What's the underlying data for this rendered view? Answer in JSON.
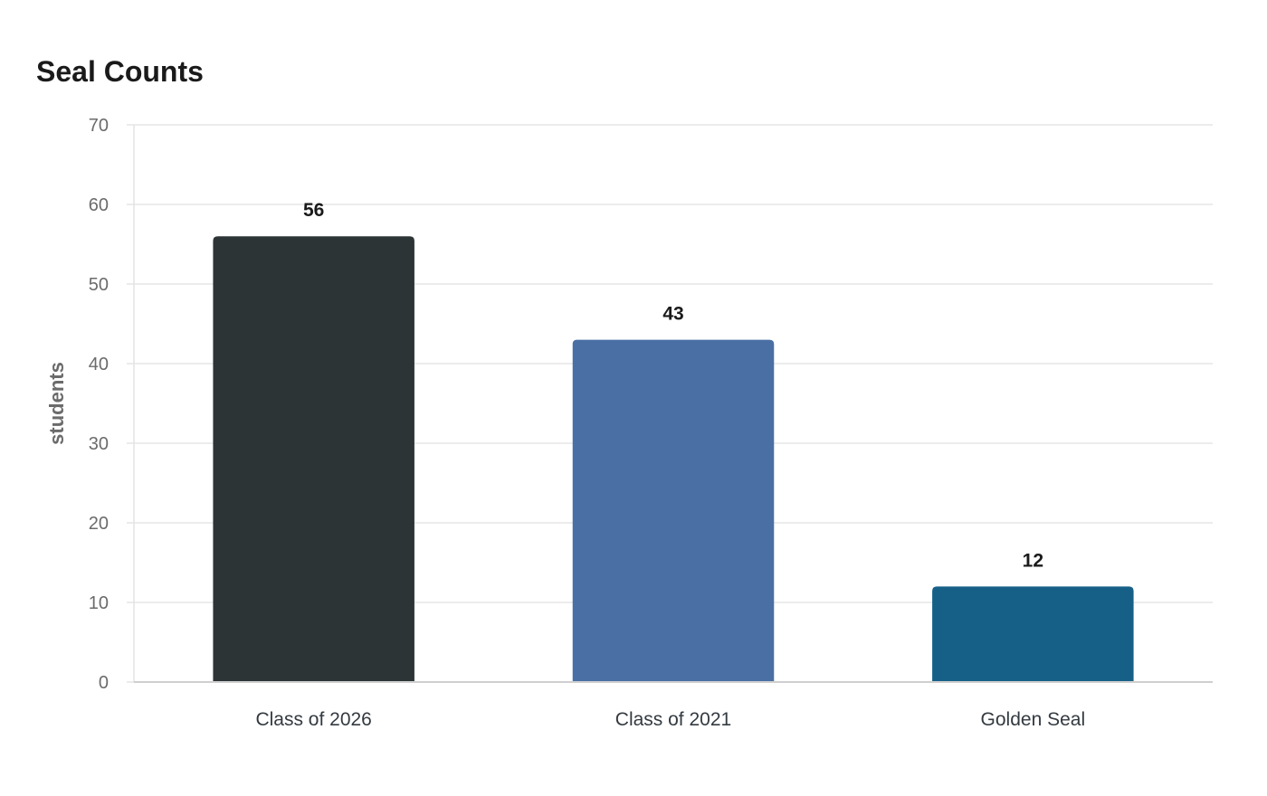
{
  "chart_data": {
    "type": "bar",
    "title": "Seal Counts",
    "xlabel": "",
    "ylabel": "students",
    "categories": [
      "Class of 2026",
      "Class of 2021",
      "Golden Seal"
    ],
    "values": [
      56,
      43,
      12
    ],
    "colors": [
      "#2d3436",
      "#4a6fa5",
      "#166088"
    ],
    "ylim": [
      0,
      70
    ],
    "yticks": [
      0,
      10,
      20,
      30,
      40,
      50,
      60,
      70
    ],
    "grid": true,
    "legend": "none",
    "data_labels": true
  }
}
